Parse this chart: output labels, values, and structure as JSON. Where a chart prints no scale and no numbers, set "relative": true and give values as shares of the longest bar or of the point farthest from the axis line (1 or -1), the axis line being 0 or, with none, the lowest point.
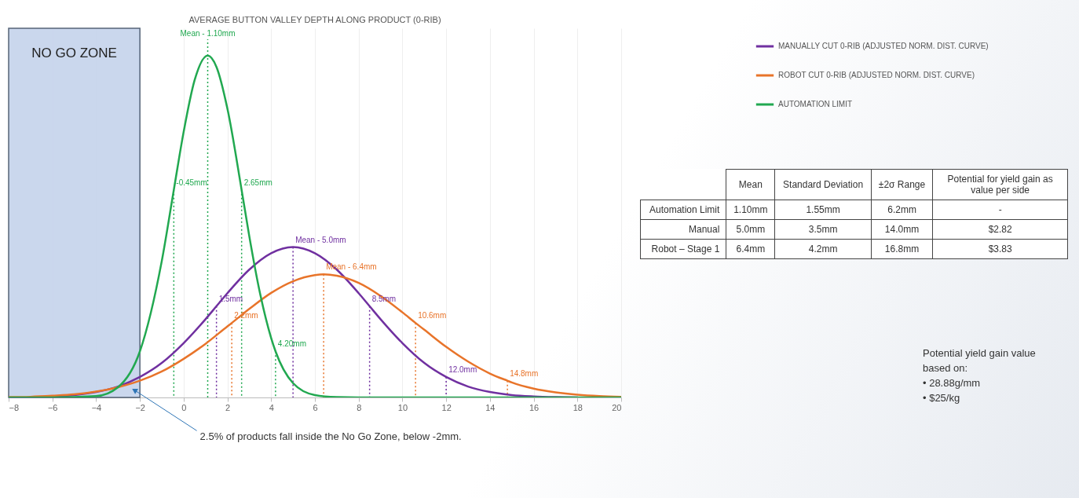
{
  "chart_data": [
    {
      "type": "line",
      "title": "AVERAGE BUTTON VALLEY DEPTH ALONG PRODUCT (0-RIB)",
      "relative": true,
      "legend": "top right",
      "grid": "x",
      "xlim": [
        -8,
        20
      ],
      "xticks": [
        -8,
        -6,
        -4,
        -2,
        0,
        2,
        4,
        6,
        8,
        10,
        12,
        14,
        16,
        18,
        20
      ],
      "series": [
        {
          "name": "MANUALLY CUT 0-RIB (ADJUSTED NORM. DIST. CURVE)",
          "color": "#7030a0",
          "x": [
            -6,
            -5,
            -4,
            -3,
            -2,
            -1,
            0,
            1,
            1.5,
            2,
            3,
            4,
            5,
            6,
            7,
            8,
            8.5,
            9,
            10,
            11,
            12,
            13,
            14,
            15,
            16,
            17,
            18
          ],
          "values": [
            0.003,
            0.007,
            0.016,
            0.032,
            0.06,
            0.101,
            0.159,
            0.229,
            0.267,
            0.305,
            0.374,
            0.422,
            0.44,
            0.422,
            0.374,
            0.305,
            0.267,
            0.229,
            0.159,
            0.101,
            0.06,
            0.032,
            0.016,
            0.007,
            0.003,
            0.001,
            0
          ]
        },
        {
          "name": "ROBOT CUT 0-RIB (ADJUSTED NORM. DIST. CURVE)",
          "color": "#e8742a",
          "x": [
            -8,
            -7,
            -6,
            -5,
            -4,
            -3,
            -2,
            -1,
            0,
            1,
            2,
            2.2,
            3,
            4,
            5,
            6,
            6.4,
            7,
            8,
            9,
            10,
            10.6,
            11,
            12,
            13,
            14,
            14.8,
            15,
            16,
            17,
            18,
            19,
            20
          ],
          "values": [
            0.001,
            0.002,
            0.005,
            0.009,
            0.017,
            0.03,
            0.049,
            0.076,
            0.113,
            0.157,
            0.208,
            0.218,
            0.259,
            0.306,
            0.34,
            0.358,
            0.36,
            0.356,
            0.335,
            0.297,
            0.249,
            0.218,
            0.198,
            0.148,
            0.105,
            0.07,
            0.049,
            0.044,
            0.026,
            0.015,
            0.008,
            0.004,
            0.002
          ]
        },
        {
          "name": "AUTOMATION LIMIT",
          "color": "#21a850",
          "x": [
            -8,
            -6,
            -4,
            -3,
            -2,
            -1,
            -0.45,
            0,
            0.5,
            1.1,
            1.5,
            2,
            2.65,
            3,
            3.5,
            4,
            4.2,
            5,
            6,
            7,
            8,
            10,
            12,
            14,
            16,
            18,
            20
          ],
          "values": [
            0,
            0,
            0.004,
            0.03,
            0.135,
            0.399,
            0.607,
            0.777,
            0.928,
            1,
            0.967,
            0.845,
            0.607,
            0.472,
            0.302,
            0.174,
            0.135,
            0.042,
            0.007,
            0.001,
            0,
            0,
            0,
            0,
            0,
            0,
            0
          ]
        }
      ],
      "ref_lines": [
        {
          "axis": "x",
          "value": 1.1,
          "label": "Mean - 1.10mm",
          "color": "#21a850",
          "line_style": "dashed"
        }
      ],
      "bands": [
        {
          "axis": "x",
          "from": -8,
          "to": -2,
          "label": "NO GO ZONE",
          "color": "#c5d3ec"
        }
      ],
      "annotations": [
        {
          "text": "-0.45mm",
          "x": -0.45,
          "y": 0.607
        },
        {
          "text": "2.65mm",
          "x": 2.65,
          "y": 0.607
        },
        {
          "text": "4.20mm",
          "x": 4.2,
          "y": 0.135
        },
        {
          "text": "Mean - 5.0mm",
          "x": 5,
          "y": 0.44
        },
        {
          "text": "1.5mm",
          "x": 1.5,
          "y": 0.267
        },
        {
          "text": "8.5mm",
          "x": 8.5,
          "y": 0.267
        },
        {
          "text": "12.0mm",
          "x": 12,
          "y": 0.06
        },
        {
          "text": "Mean - 6.4mm",
          "x": 6.4,
          "y": 0.36
        },
        {
          "text": "2.2mm",
          "x": 2.2,
          "y": 0.218
        },
        {
          "text": "10.6mm",
          "x": 10.6,
          "y": 0.218
        },
        {
          "text": "14.8mm",
          "x": 14.8,
          "y": 0.049
        },
        "2.5% of products fall inside the No Go Zone, below -2mm.",
        "Potential yield gain value based on:",
        "• 28.88g/mm",
        "• $25/kg"
      ]
    },
    {
      "type": "other",
      "categories": [
        "Mean",
        "Standard Deviation",
        "±2σ Range",
        "Potential for yield gain as value per side"
      ],
      "y_categories": [
        "Automation Limit",
        "Manual",
        "Robot – Stage 1"
      ],
      "cell_labels": [
        [
          "1.10mm",
          "1.55mm",
          "6.2mm",
          "-"
        ],
        [
          "5.0mm",
          "3.5mm",
          "14.0mm",
          "$2.82"
        ],
        [
          "6.4mm",
          "4.2mm",
          "16.8mm",
          "$3.83"
        ]
      ]
    }
  ]
}
